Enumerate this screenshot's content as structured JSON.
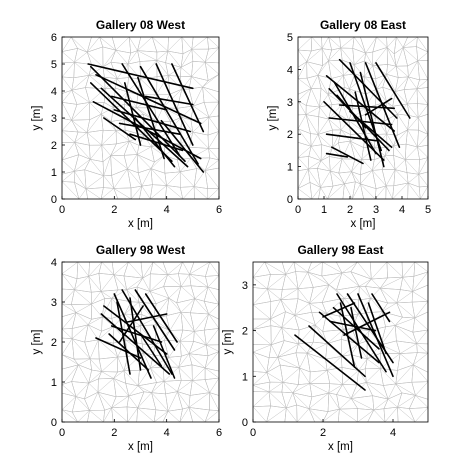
{
  "chart_data": [
    {
      "type": "scatter",
      "title": "Gallery 08 West",
      "xlabel": "x [m]",
      "ylabel": "y [m]",
      "xlim": [
        0,
        6
      ],
      "ylim": [
        0,
        6
      ],
      "xticks": [
        0,
        2,
        4,
        6
      ],
      "yticks": [
        0,
        1,
        2,
        3,
        4,
        5,
        6
      ],
      "grid": false,
      "series": [
        {
          "style": "fracture-segments",
          "segments": [
            [
              [
                1.0,
                5.0
              ],
              [
                5.0,
                4.1
              ]
            ],
            [
              [
                1.1,
                4.9
              ],
              [
                4.7,
                1.4
              ]
            ],
            [
              [
                1.3,
                4.6
              ],
              [
                5.3,
                2.8
              ]
            ],
            [
              [
                1.1,
                4.3
              ],
              [
                4.2,
                1.4
              ]
            ],
            [
              [
                1.5,
                4.1
              ],
              [
                4.8,
                1.2
              ]
            ],
            [
              [
                1.2,
                3.6
              ],
              [
                5.3,
                1.5
              ]
            ],
            [
              [
                2.3,
                5.0
              ],
              [
                4.5,
                1.6
              ]
            ],
            [
              [
                3.0,
                4.9
              ],
              [
                5.2,
                1.3
              ]
            ],
            [
              [
                3.6,
                5.0
              ],
              [
                5.0,
                2.0
              ]
            ],
            [
              [
                4.2,
                5.0
              ],
              [
                5.4,
                2.5
              ]
            ],
            [
              [
                1.9,
                3.8
              ],
              [
                4.0,
                3.3
              ]
            ],
            [
              [
                2.0,
                3.3
              ],
              [
                4.9,
                2.5
              ]
            ],
            [
              [
                2.4,
                4.3
              ],
              [
                3.0,
                2.0
              ]
            ],
            [
              [
                2.2,
                2.8
              ],
              [
                4.5,
                2.4
              ]
            ],
            [
              [
                2.9,
                4.5
              ],
              [
                3.9,
                1.5
              ]
            ],
            [
              [
                3.2,
                3.8
              ],
              [
                5.0,
                3.5
              ]
            ],
            [
              [
                2.6,
                2.4
              ],
              [
                4.6,
                1.8
              ]
            ],
            [
              [
                3.8,
                2.9
              ],
              [
                5.4,
                1.0
              ]
            ],
            [
              [
                1.6,
                3.0
              ],
              [
                2.8,
                2.2
              ]
            ],
            [
              [
                2.8,
                3.0
              ],
              [
                4.3,
                1.2
              ]
            ]
          ]
        }
      ]
    },
    {
      "type": "scatter",
      "title": "Gallery 08 East",
      "xlabel": "x [m]",
      "ylabel": "y [m]",
      "xlim": [
        0,
        5
      ],
      "ylim": [
        0,
        5
      ],
      "xticks": [
        0,
        1,
        2,
        3,
        4,
        5
      ],
      "yticks": [
        0,
        1,
        2,
        3,
        4,
        5
      ],
      "grid": false,
      "series": [
        {
          "style": "fracture-segments",
          "segments": [
            [
              [
                1.1,
                3.8
              ],
              [
                3.7,
                2.1
              ]
            ],
            [
              [
                1.2,
                3.4
              ],
              [
                3.5,
                1.5
              ]
            ],
            [
              [
                1.0,
                3.0
              ],
              [
                3.3,
                1.2
              ]
            ],
            [
              [
                1.4,
                3.6
              ],
              [
                3.0,
                1.4
              ]
            ],
            [
              [
                1.6,
                4.3
              ],
              [
                3.8,
                2.5
              ]
            ],
            [
              [
                2.0,
                4.2
              ],
              [
                3.2,
                1.5
              ]
            ],
            [
              [
                2.6,
                4.2
              ],
              [
                3.9,
                1.6
              ]
            ],
            [
              [
                3.0,
                4.2
              ],
              [
                4.3,
                2.5
              ]
            ],
            [
              [
                1.2,
                2.5
              ],
              [
                3.6,
                2.3
              ]
            ],
            [
              [
                1.1,
                2.0
              ],
              [
                3.0,
                1.8
              ]
            ],
            [
              [
                1.6,
                2.9
              ],
              [
                3.7,
                2.8
              ]
            ],
            [
              [
                2.2,
                3.3
              ],
              [
                2.8,
                1.2
              ]
            ],
            [
              [
                2.4,
                3.9
              ],
              [
                3.3,
                1.0
              ]
            ],
            [
              [
                1.3,
                1.6
              ],
              [
                2.5,
                1.1
              ]
            ],
            [
              [
                1.5,
                3.2
              ],
              [
                2.6,
                2.2
              ]
            ],
            [
              [
                2.0,
                2.7
              ],
              [
                3.6,
                1.6
              ]
            ],
            [
              [
                1.1,
                1.4
              ],
              [
                1.9,
                1.3
              ]
            ],
            [
              [
                2.6,
                2.6
              ],
              [
                3.6,
                3.1
              ]
            ]
          ]
        }
      ]
    },
    {
      "type": "scatter",
      "title": "Gallery 98 West",
      "xlabel": "x [m]",
      "ylabel": "y [m]",
      "xlim": [
        0,
        6
      ],
      "ylim": [
        0,
        4
      ],
      "xticks": [
        0,
        2,
        4,
        6
      ],
      "yticks": [
        0,
        1,
        2,
        3,
        4
      ],
      "grid": false,
      "series": [
        {
          "style": "fracture-segments",
          "segments": [
            [
              [
                1.5,
                2.7
              ],
              [
                4.1,
                1.2
              ]
            ],
            [
              [
                1.3,
                2.1
              ],
              [
                3.0,
                1.6
              ]
            ],
            [
              [
                1.6,
                2.9
              ],
              [
                4.0,
                1.7
              ]
            ],
            [
              [
                2.0,
                3.2
              ],
              [
                3.4,
                1.1
              ]
            ],
            [
              [
                2.3,
                3.3
              ],
              [
                4.2,
                1.2
              ]
            ],
            [
              [
                2.8,
                3.3
              ],
              [
                4.3,
                1.8
              ]
            ],
            [
              [
                3.2,
                3.2
              ],
              [
                4.4,
                2.0
              ]
            ],
            [
              [
                1.9,
                2.4
              ],
              [
                3.8,
                2.0
              ]
            ],
            [
              [
                2.1,
                3.0
              ],
              [
                2.6,
                1.2
              ]
            ],
            [
              [
                2.6,
                3.1
              ],
              [
                3.0,
                1.3
              ]
            ],
            [
              [
                1.8,
                2.2
              ],
              [
                3.3,
                1.3
              ]
            ],
            [
              [
                2.5,
                2.5
              ],
              [
                4.0,
                2.7
              ]
            ],
            [
              [
                3.5,
                2.4
              ],
              [
                4.3,
                1.1
              ]
            ],
            [
              [
                2.2,
                2.0
              ],
              [
                3.1,
                2.9
              ]
            ],
            [
              [
                3.0,
                2.2
              ],
              [
                3.8,
                1.4
              ]
            ]
          ]
        }
      ]
    },
    {
      "type": "scatter",
      "title": "Gallery 98 East",
      "xlabel": "x [m]",
      "ylabel": "y [m]",
      "xlim": [
        0,
        5
      ],
      "ylim": [
        0,
        3.5
      ],
      "xticks": [
        0,
        2,
        4
      ],
      "yticks": [
        0,
        1,
        2,
        3
      ],
      "grid": false,
      "series": [
        {
          "style": "fracture-segments",
          "segments": [
            [
              [
                1.2,
                1.9
              ],
              [
                3.2,
                0.7
              ]
            ],
            [
              [
                1.6,
                2.1
              ],
              [
                3.2,
                1.0
              ]
            ],
            [
              [
                1.9,
                2.4
              ],
              [
                3.6,
                1.3
              ]
            ],
            [
              [
                2.3,
                2.5
              ],
              [
                3.6,
                1.6
              ]
            ],
            [
              [
                2.4,
                2.8
              ],
              [
                3.8,
                1.1
              ]
            ],
            [
              [
                2.7,
                2.8
              ],
              [
                4.0,
                1.3
              ]
            ],
            [
              [
                3.0,
                2.8
              ],
              [
                4.0,
                1.0
              ]
            ],
            [
              [
                3.3,
                2.6
              ],
              [
                3.8,
                1.5
              ]
            ],
            [
              [
                2.2,
                2.2
              ],
              [
                3.5,
                2.0
              ]
            ],
            [
              [
                2.5,
                2.6
              ],
              [
                2.9,
                1.2
              ]
            ],
            [
              [
                2.8,
                2.5
              ],
              [
                3.1,
                1.4
              ]
            ],
            [
              [
                2.6,
                1.9
              ],
              [
                3.9,
                2.4
              ]
            ],
            [
              [
                3.4,
                2.8
              ],
              [
                3.9,
                2.2
              ]
            ],
            [
              [
                2.0,
                2.3
              ],
              [
                2.9,
                2.6
              ]
            ]
          ]
        }
      ]
    }
  ]
}
